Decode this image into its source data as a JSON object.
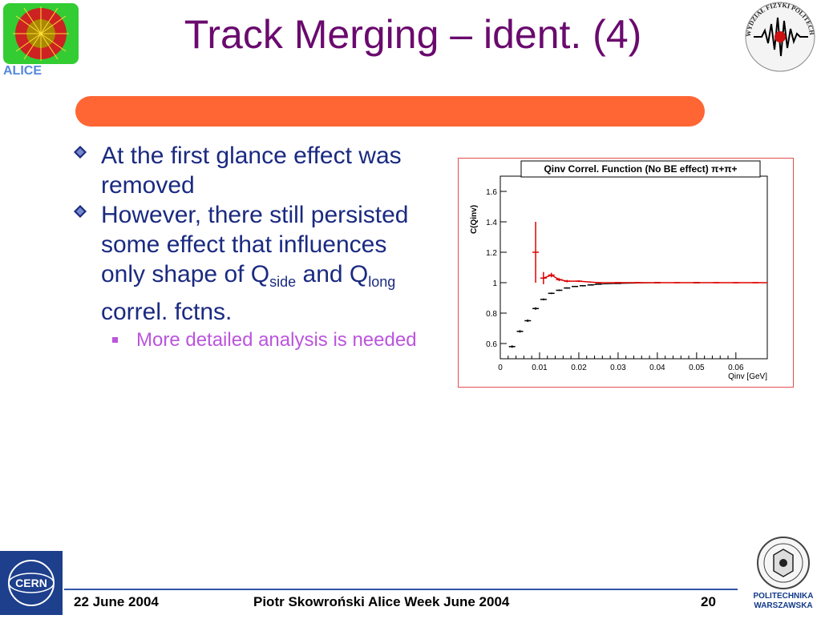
{
  "slide": {
    "title": "Track Merging – ident. (4)",
    "bullets": [
      {
        "text": "At the first glance effect was removed"
      },
      {
        "text_pre": "However, there still persisted some effect that influences only shape of Q",
        "sub1": "side",
        "mid": " and Q",
        "sub2": "long",
        "post": " correl. fctns."
      }
    ],
    "sub_bullets": [
      "More detailed analysis is needed"
    ],
    "footer": {
      "date": "22 June 2004",
      "center": "Piotr Skowroński  Alice Week June  2004",
      "page": "20"
    },
    "logos": {
      "top_left_text": "ALICE",
      "top_right_text": "WYDZIAŁ FIZYKI POLITECHNIKA WARSZAWSKA",
      "bottom_left_text": "CERN",
      "bottom_right_text": "POLITECHNIKA WARSZAWSKA"
    }
  },
  "chart_data": {
    "type": "scatter",
    "title": "Qinv Correl. Function (No BE effect) π+π+",
    "ylabel": "C(Qinv)",
    "xlabel": "Qinv [GeV]",
    "xlim": [
      0,
      0.068
    ],
    "ylim": [
      0.5,
      1.7
    ],
    "xticks": [
      "0",
      "0.01",
      "0.02",
      "0.03",
      "0.04",
      "0.05",
      "0.06"
    ],
    "yticks": [
      "0.6",
      "0.8",
      "1",
      "1.2",
      "1.4",
      "1.6"
    ],
    "series": [
      {
        "color": "#000000",
        "x": [
          0.003,
          0.005,
          0.007,
          0.009,
          0.011,
          0.013,
          0.015,
          0.017,
          0.019,
          0.021,
          0.023,
          0.025,
          0.03,
          0.04,
          0.05
        ],
        "y": [
          0.58,
          0.68,
          0.75,
          0.83,
          0.89,
          0.93,
          0.95,
          0.965,
          0.975,
          0.98,
          0.985,
          0.99,
          0.995,
          1.0,
          1.0
        ],
        "err": [
          0.008,
          0.008,
          0.008,
          0.008,
          0.006,
          0.005,
          0.005,
          0.004,
          0.004,
          0.004,
          0.004,
          0.003,
          0.003,
          0.003,
          0.003
        ]
      },
      {
        "color": "#dd0000",
        "x": [
          0.009,
          0.011,
          0.013,
          0.015,
          0.017,
          0.02,
          0.025,
          0.03,
          0.035,
          0.04,
          0.045,
          0.05,
          0.055,
          0.06,
          0.065
        ],
        "y": [
          1.2,
          1.03,
          1.05,
          1.02,
          1.01,
          1.01,
          1.0,
          1.0,
          1.0,
          1.0,
          1.0,
          1.0,
          1.0,
          1.0,
          1.0
        ],
        "err": [
          0.2,
          0.04,
          0.015,
          0.01,
          0.008,
          0.006,
          0.004,
          0.004,
          0.003,
          0.003,
          0.003,
          0.003,
          0.003,
          0.003,
          0.003
        ]
      }
    ]
  }
}
